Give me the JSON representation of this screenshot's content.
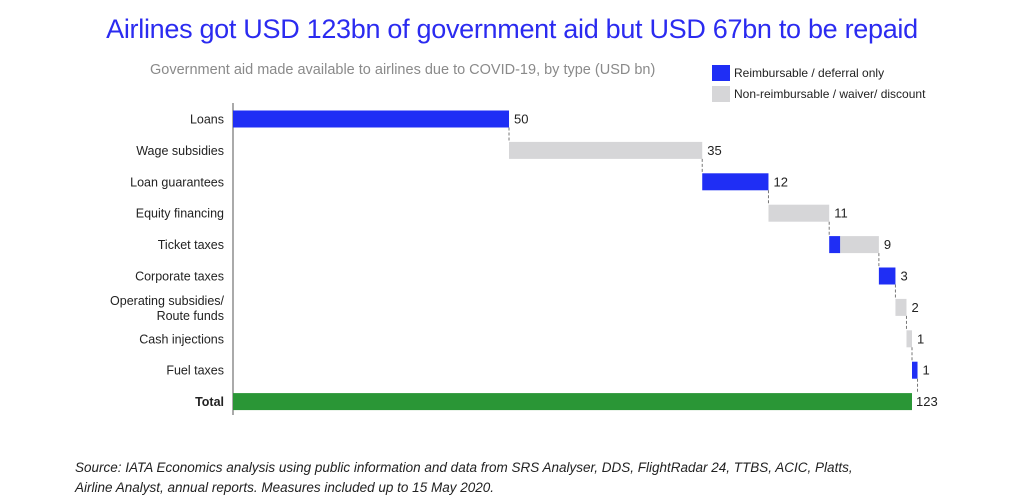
{
  "title": "Airlines got USD 123bn of government aid but USD 67bn to be repaid",
  "colors": {
    "title": "#2b2bf0",
    "reimbursable": "#1f2ef5",
    "non_reimbursable": "#d6d6d8",
    "total": "#2a9636"
  },
  "chart_data": {
    "type": "bar",
    "subtype": "waterfall-horizontal",
    "title": "Government aid made available to airlines due to COVID-19, by type (USD bn)",
    "legend": [
      {
        "name": "Reimbursable / deferral only",
        "color": "#1f2ef5"
      },
      {
        "name": "Non-reimbursable / waiver/ discount",
        "color": "#d6d6d8"
      }
    ],
    "legend_position": "top-right",
    "xlim": [
      0,
      123
    ],
    "categories": [
      {
        "label": [
          "Loans"
        ],
        "reimbursable": 50,
        "non_reimbursable": 0,
        "total_label": "50"
      },
      {
        "label": [
          "Wage subsidies"
        ],
        "reimbursable": 0,
        "non_reimbursable": 35,
        "total_label": "35"
      },
      {
        "label": [
          "Loan guarantees"
        ],
        "reimbursable": 12,
        "non_reimbursable": 0,
        "total_label": "12"
      },
      {
        "label": [
          "Equity financing"
        ],
        "reimbursable": 0,
        "non_reimbursable": 11,
        "total_label": "11"
      },
      {
        "label": [
          "Ticket taxes"
        ],
        "reimbursable": 2,
        "non_reimbursable": 7,
        "total_label": "9"
      },
      {
        "label": [
          "Corporate taxes"
        ],
        "reimbursable": 3,
        "non_reimbursable": 0,
        "total_label": "3"
      },
      {
        "label": [
          "Operating subsidies/",
          "Route funds"
        ],
        "reimbursable": 0,
        "non_reimbursable": 2,
        "total_label": "2"
      },
      {
        "label": [
          "Cash injections"
        ],
        "reimbursable": 0,
        "non_reimbursable": 1,
        "total_label": "1"
      },
      {
        "label": [
          "Fuel taxes"
        ],
        "reimbursable": 1,
        "non_reimbursable": 0,
        "total_label": "1"
      }
    ],
    "total": {
      "label": "Total",
      "value": 123,
      "total_label": "123"
    }
  },
  "source": [
    "Source: IATA Economics analysis using public information and data from SRS Analyser, DDS, FlightRadar 24, TTBS, ACIC, Platts,",
    "Airline Analyst, annual reports. Measures included up to 15 May 2020."
  ]
}
